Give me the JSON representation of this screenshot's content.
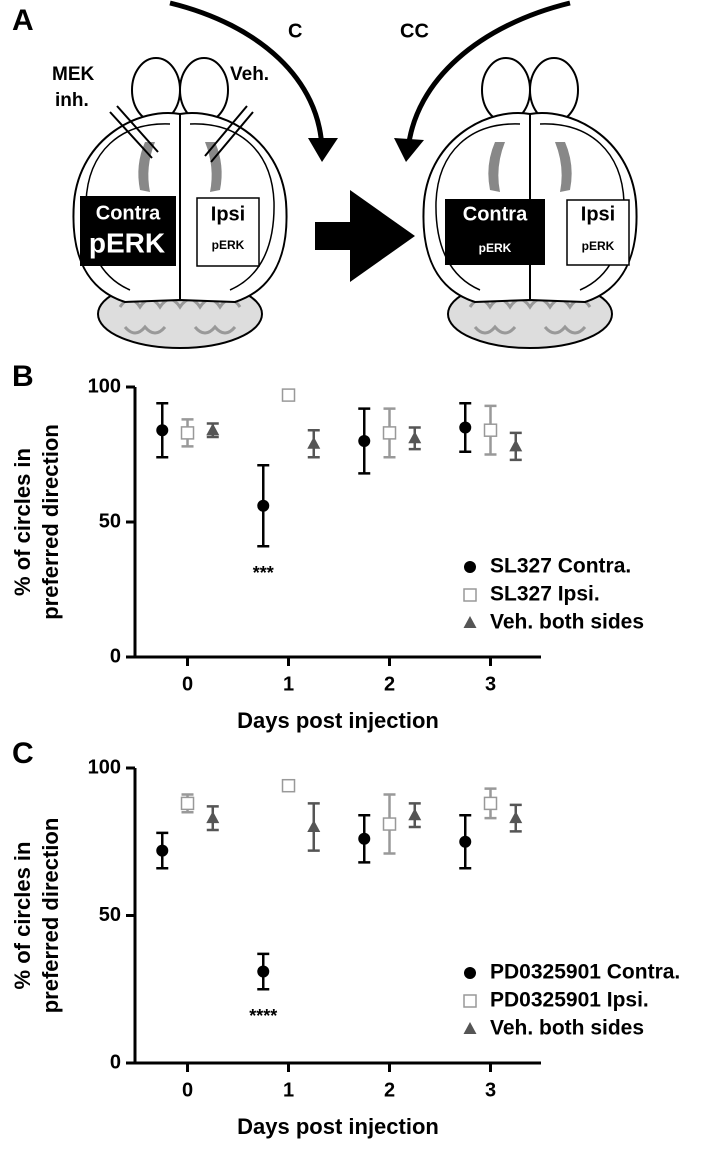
{
  "diagram": {
    "panel": "A",
    "left": {
      "rotation": "C",
      "drug": [
        "MEK",
        "inh."
      ],
      "vehicle": "Veh.",
      "contra": [
        "Contra",
        "pERK"
      ],
      "ipsi": [
        "Ipsi",
        "pERK"
      ]
    },
    "right": {
      "rotation": "CC",
      "contra": [
        "Contra",
        "pERK"
      ],
      "ipsi": [
        "Ipsi",
        "pERK"
      ]
    }
  },
  "chart_data": [
    {
      "type": "scatter",
      "panel": "B",
      "xlabel": "Days post injection",
      "ylabel": [
        "% of circles in",
        "preferred direction"
      ],
      "xlim": [
        -0.52,
        3.5
      ],
      "ylim": [
        0,
        100
      ],
      "xticks": [
        0,
        1,
        2,
        3
      ],
      "yticks": [
        0,
        50,
        100
      ],
      "legend": "lower right",
      "annotation": "***",
      "series": [
        {
          "name": "SL327 Contra.",
          "color": "#000000",
          "marker": "circle",
          "x": [
            -0.25,
            0.75,
            1.75,
            2.75
          ],
          "values": [
            84,
            56,
            80,
            85
          ],
          "errors": [
            10,
            15,
            12,
            9
          ]
        },
        {
          "name": "SL327 Ipsi.",
          "color": "#999999",
          "marker": "square",
          "x": [
            0,
            1,
            2,
            3
          ],
          "values": [
            83,
            97,
            83,
            84
          ],
          "errors": [
            5,
            1,
            9,
            9
          ]
        },
        {
          "name": "Veh. both sides",
          "color": "#555555",
          "marker": "triangle",
          "x": [
            0.25,
            1.25,
            2.25,
            3.25
          ],
          "values": [
            84,
            79,
            81,
            78
          ],
          "errors": [
            2.5,
            5,
            4,
            5
          ]
        }
      ]
    },
    {
      "type": "scatter",
      "panel": "C",
      "xlabel": "Days post injection",
      "ylabel": [
        "% of circles in",
        "preferred direction"
      ],
      "xlim": [
        -0.52,
        3.5
      ],
      "ylim": [
        0,
        100
      ],
      "xticks": [
        0,
        1,
        2,
        3
      ],
      "yticks": [
        0,
        50,
        100
      ],
      "legend": "lower right",
      "annotation": "****",
      "series": [
        {
          "name": "PD0325901 Contra.",
          "color": "#000000",
          "marker": "circle",
          "x": [
            -0.25,
            0.75,
            1.75,
            2.75
          ],
          "values": [
            72,
            31,
            76,
            75
          ],
          "errors": [
            6,
            6,
            8,
            9
          ]
        },
        {
          "name": "PD0325901 Ipsi.",
          "color": "#999999",
          "marker": "square",
          "x": [
            0,
            1,
            2,
            3
          ],
          "values": [
            88,
            94,
            81,
            88
          ],
          "errors": [
            3,
            1,
            10,
            5
          ]
        },
        {
          "name": "Veh. both sides",
          "color": "#555555",
          "marker": "triangle",
          "x": [
            0.25,
            1.25,
            2.25,
            3.25
          ],
          "values": [
            83,
            80,
            84,
            83
          ],
          "errors": [
            4,
            8,
            4,
            4.5
          ]
        }
      ]
    }
  ]
}
